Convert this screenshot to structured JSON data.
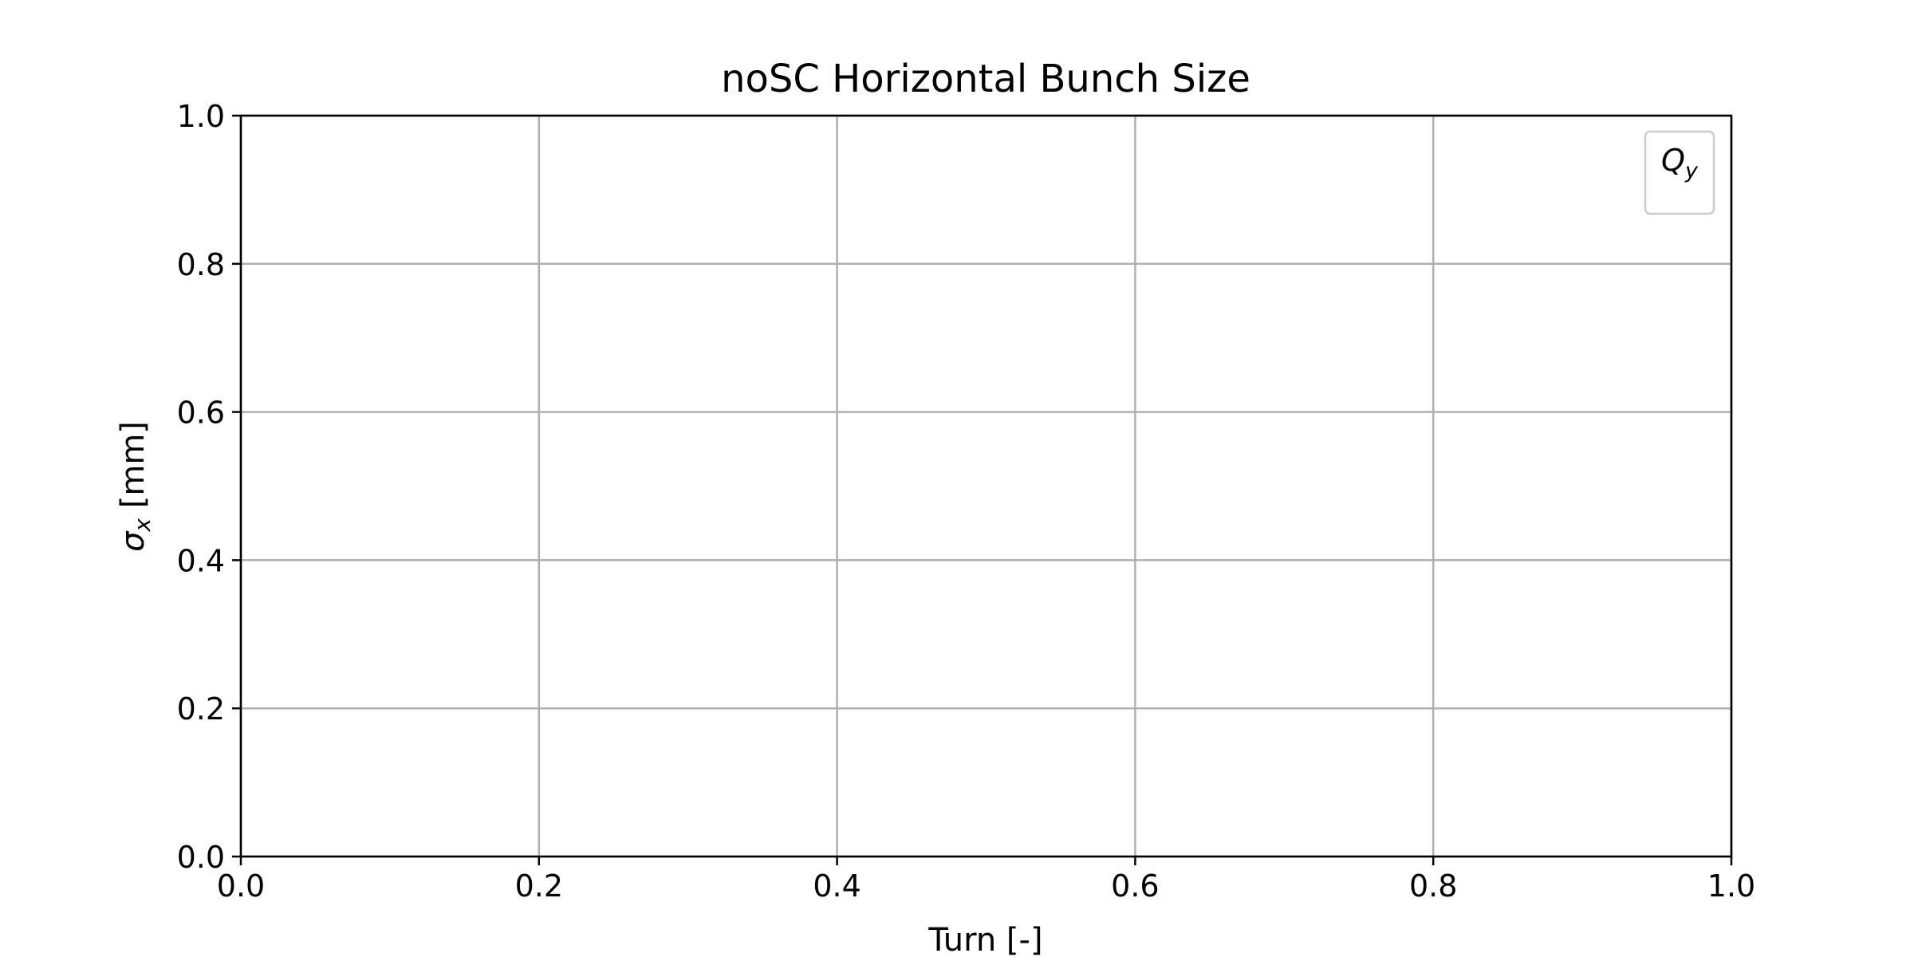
{
  "chart_data": {
    "type": "line",
    "title": "noSC Horizontal Bunch Size",
    "xlabel": "Turn [-]",
    "ylabel": {
      "symbol": "σ",
      "subscript": "x",
      "unit": " [mm]"
    },
    "xlim": [
      0.0,
      1.0
    ],
    "ylim": [
      0.0,
      1.0
    ],
    "xticks": [
      "0.0",
      "0.2",
      "0.4",
      "0.6",
      "0.8",
      "1.0"
    ],
    "yticks": [
      "0.0",
      "0.2",
      "0.4",
      "0.6",
      "0.8",
      "1.0"
    ],
    "grid": true,
    "legend_position": "top-right",
    "legend": {
      "title_symbol": "Q",
      "title_subscript": "y"
    },
    "series": [],
    "colors": {
      "grid": "#b0b0b0",
      "axes": "#000000",
      "legend_border": "#cccccc"
    }
  }
}
